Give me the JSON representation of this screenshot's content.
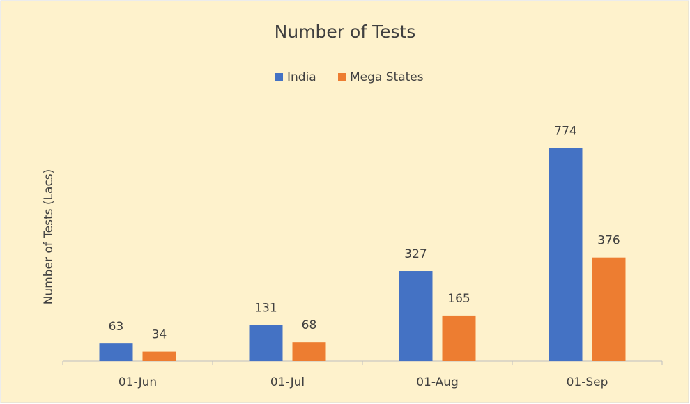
{
  "chart_data": {
    "type": "bar",
    "title": "Number of Tests",
    "y_label": "Number of Tests (Lacs)",
    "categories": [
      "01-Jun",
      "01-Jul",
      "01-Aug",
      "01-Sep"
    ],
    "series": [
      {
        "name": "India",
        "color": "#4472c4",
        "values": [
          63,
          131,
          327,
          774
        ]
      },
      {
        "name": "Mega States",
        "color": "#ed7d31",
        "values": [
          34,
          68,
          165,
          376
        ]
      }
    ],
    "ylim": [
      0,
      900
    ],
    "legend": "top",
    "data_labels": true
  }
}
